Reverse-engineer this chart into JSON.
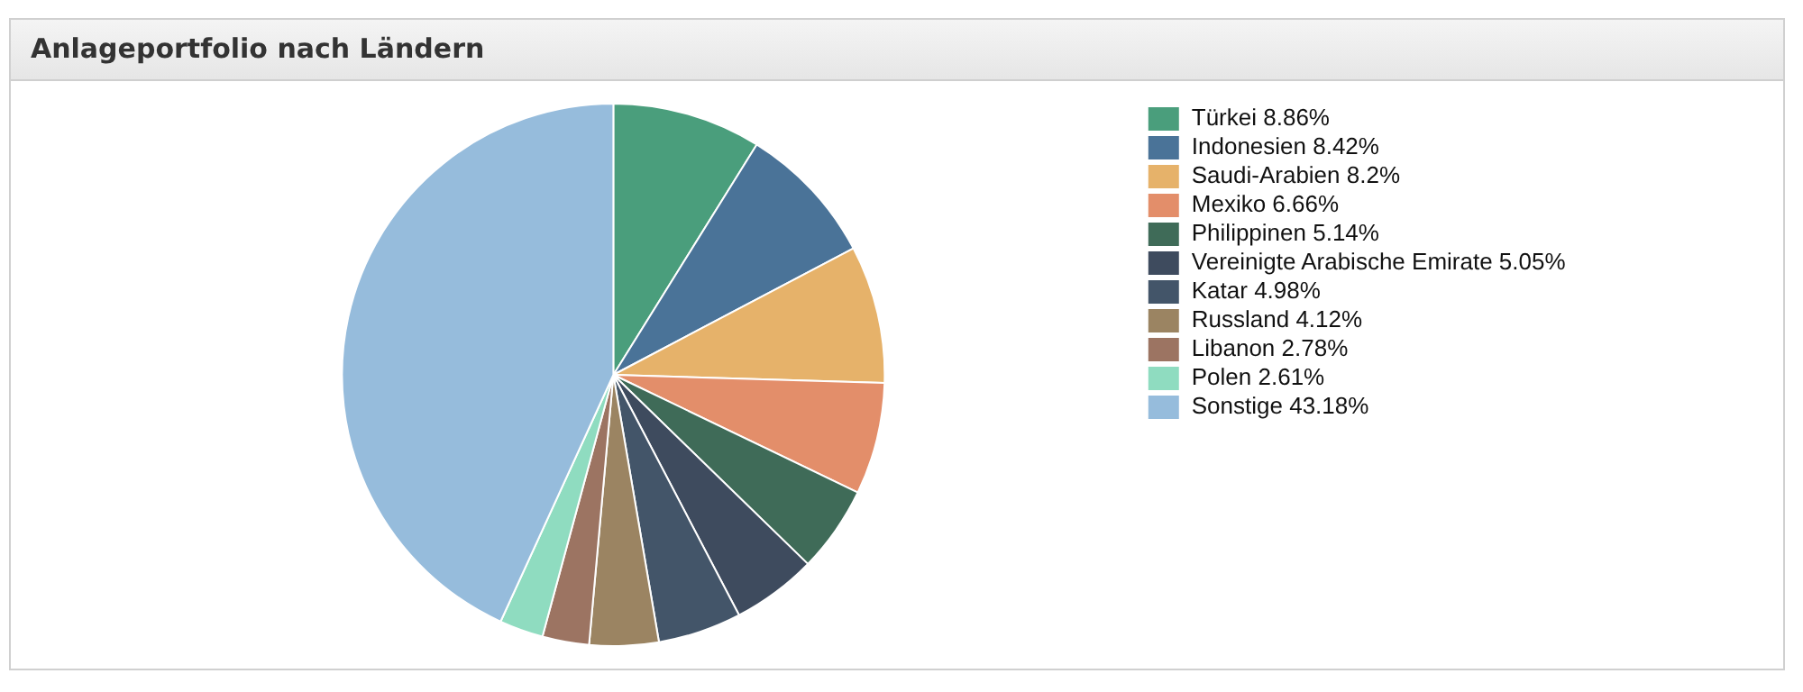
{
  "chart_data": {
    "type": "pie",
    "title": "Anlageportfolio nach Ländern",
    "categories": [
      "Türkei 8.86%",
      "Indonesien 8.42%",
      "Saudi-Arabien 8.2%",
      "Mexiko 6.66%",
      "Philippinen 5.14%",
      "Vereinigte Arabische Emirate 5.05%",
      "Katar 4.98%",
      "Russland 4.12%",
      "Libanon 2.78%",
      "Polen 2.61%",
      "Sonstige 43.18%"
    ],
    "values": [
      8.86,
      8.42,
      8.2,
      6.66,
      5.14,
      5.05,
      4.98,
      4.12,
      2.78,
      2.61,
      43.18
    ],
    "colors": [
      "#4a9e7c",
      "#4a7398",
      "#e6b26a",
      "#e38e6a",
      "#3f6b58",
      "#3e4b5e",
      "#435569",
      "#9b8462",
      "#9c7462",
      "#8fdcc0",
      "#96bcdc"
    ],
    "legend": "right"
  }
}
